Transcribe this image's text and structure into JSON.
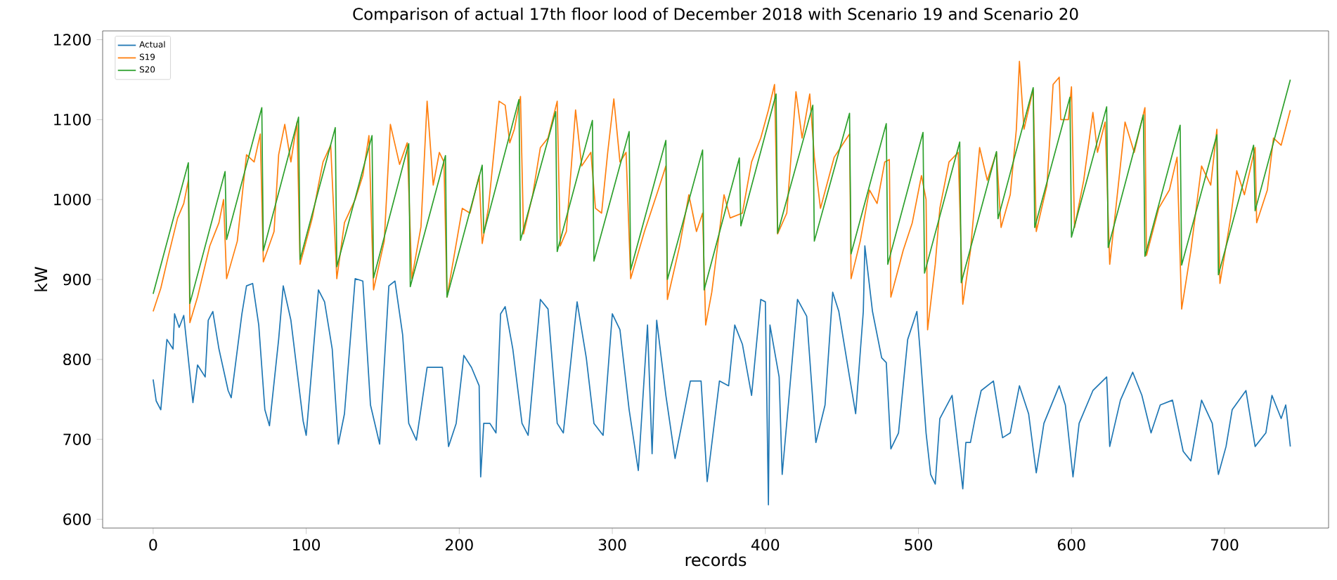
{
  "chart_data": {
    "type": "line",
    "title": "Comparison of actual 17th floor lood of December 2018 with Scenario 19 and Scenario 20",
    "xlabel": "records",
    "ylabel": "kW",
    "xlim": [
      -33,
      768
    ],
    "ylim": [
      589,
      1211
    ],
    "xticks": [
      0,
      100,
      200,
      300,
      400,
      500,
      600,
      700
    ],
    "yticks": [
      600,
      700,
      800,
      900,
      1000,
      1100,
      1200
    ],
    "legend": "top left",
    "grid": false,
    "line_style": "solid",
    "marker": "none",
    "series": [
      {
        "name": "Actual",
        "color": "#1f77b4",
        "x": [
          0,
          2,
          5,
          9,
          13,
          14,
          17,
          20,
          26,
          29,
          34,
          36,
          39,
          43,
          49,
          51,
          58,
          61,
          65,
          69,
          73,
          76,
          82,
          85,
          90,
          98,
          100,
          108,
          112,
          117,
          121,
          125,
          132,
          137,
          142,
          148,
          154,
          158,
          163,
          167,
          172,
          179,
          189,
          193,
          198,
          203,
          208,
          213,
          214,
          216,
          220,
          224,
          227,
          230,
          235,
          241,
          245,
          253,
          258,
          264,
          268,
          277,
          283,
          288,
          294,
          300,
          305,
          311,
          317,
          323,
          326,
          329,
          335,
          341,
          351,
          358,
          362,
          370,
          376,
          380,
          385,
          391,
          397,
          400,
          402,
          403,
          409,
          411,
          415,
          421,
          427,
          433,
          439,
          444,
          448,
          455,
          459,
          464,
          465,
          470,
          476,
          479,
          482,
          487,
          493,
          499,
          501,
          505,
          508,
          511,
          514,
          522,
          529,
          531,
          534,
          537,
          541,
          549,
          555,
          560,
          566,
          572,
          577,
          582,
          592,
          596,
          601,
          605,
          614,
          623,
          625,
          632,
          640,
          646,
          652,
          658,
          666,
          673,
          678,
          685,
          692,
          696,
          701,
          705,
          714,
          720,
          727,
          731,
          737,
          740,
          743
        ],
        "values": [
          775,
          748,
          737,
          825,
          813,
          857,
          840,
          855,
          746,
          793,
          778,
          849,
          860,
          813,
          761,
          752,
          857,
          892,
          895,
          843,
          737,
          717,
          825,
          892,
          849,
          723,
          705,
          887,
          872,
          813,
          694,
          732,
          901,
          898,
          743,
          694,
          892,
          898,
          831,
          720,
          699,
          790,
          790,
          691,
          720,
          805,
          790,
          767,
          653,
          720,
          720,
          708,
          857,
          866,
          813,
          720,
          705,
          875,
          863,
          720,
          708,
          872,
          802,
          720,
          705,
          857,
          837,
          737,
          661,
          843,
          682,
          849,
          755,
          676,
          773,
          773,
          647,
          773,
          767,
          843,
          819,
          755,
          875,
          872,
          618,
          843,
          778,
          656,
          743,
          875,
          854,
          696,
          743,
          884,
          860,
          778,
          732,
          860,
          942,
          860,
          802,
          796,
          688,
          708,
          825,
          860,
          813,
          708,
          656,
          644,
          726,
          755,
          638,
          696,
          696,
          726,
          761,
          773,
          702,
          708,
          767,
          732,
          658,
          720,
          767,
          743,
          653,
          720,
          761,
          778,
          691,
          749,
          784,
          755,
          708,
          743,
          749,
          685,
          673,
          749,
          720,
          656,
          691,
          737,
          761,
          691,
          708,
          755,
          726,
          743,
          691
        ]
      },
      {
        "name": "S19",
        "color": "#ff7f0e",
        "x": [
          0,
          5,
          10,
          16,
          20,
          23,
          24,
          29,
          37,
          43,
          46,
          48,
          55,
          61,
          66,
          70,
          72,
          79,
          82,
          86,
          90,
          94,
          96,
          104,
          108,
          111,
          116,
          120,
          125,
          132,
          137,
          141,
          144,
          151,
          155,
          161,
          166,
          169,
          175,
          179,
          183,
          187,
          190,
          192,
          202,
          207,
          213,
          215,
          219,
          226,
          230,
          233,
          236,
          240,
          242,
          248,
          253,
          258,
          264,
          266,
          270,
          276,
          280,
          286,
          289,
          293,
          297,
          301,
          305,
          309,
          312,
          321,
          330,
          335,
          336,
          344,
          350,
          355,
          359,
          361,
          365,
          373,
          377,
          385,
          391,
          397,
          402,
          406,
          408,
          414,
          420,
          424,
          429,
          432,
          436,
          445,
          455,
          456,
          462,
          468,
          473,
          478,
          481,
          482,
          490,
          496,
          502,
          505,
          506,
          511,
          514,
          520,
          526,
          529,
          534,
          540,
          545,
          551,
          554,
          560,
          564,
          566,
          569,
          575,
          577,
          584,
          588,
          592,
          593,
          598,
          600,
          602,
          608,
          614,
          617,
          622,
          625,
          629,
          635,
          641,
          648,
          649,
          657,
          664,
          669,
          672,
          678,
          685,
          691,
          695,
          697,
          704,
          708,
          713,
          720,
          721,
          728,
          732,
          737,
          743
        ],
        "values": [
          860,
          889,
          930,
          977,
          995,
          1024,
          846,
          878,
          942,
          971,
          1000,
          901,
          948,
          1056,
          1047,
          1082,
          922,
          960,
          1056,
          1094,
          1047,
          1097,
          919,
          977,
          1018,
          1047,
          1068,
          901,
          971,
          1000,
          1030,
          1080,
          887,
          948,
          1094,
          1044,
          1071,
          901,
          966,
          1123,
          1018,
          1059,
          1047,
          878,
          989,
          983,
          1030,
          945,
          989,
          1123,
          1118,
          1071,
          1088,
          1129,
          957,
          1006,
          1065,
          1077,
          1123,
          942,
          960,
          1112,
          1042,
          1059,
          989,
          983,
          1059,
          1126,
          1047,
          1059,
          901,
          960,
          1012,
          1042,
          875,
          942,
          1006,
          960,
          983,
          843,
          884,
          1006,
          977,
          983,
          1047,
          1077,
          1112,
          1144,
          957,
          983,
          1135,
          1077,
          1132,
          1053,
          989,
          1053,
          1082,
          901,
          948,
          1012,
          995,
          1047,
          1050,
          878,
          936,
          971,
          1030,
          1000,
          837,
          919,
          989,
          1047,
          1059,
          869,
          936,
          1065,
          1024,
          1059,
          965,
          1006,
          1088,
          1173,
          1088,
          1138,
          960,
          1018,
          1144,
          1153,
          1100,
          1100,
          1141,
          965,
          1024,
          1109,
          1059,
          1097,
          919,
          989,
          1097,
          1059,
          1115,
          930,
          989,
          1012,
          1053,
          863,
          936,
          1042,
          1018,
          1088,
          895,
          977,
          1036,
          1006,
          1065,
          971,
          1012,
          1077,
          1068,
          1112
        ]
      },
      {
        "name": "S20",
        "color": "#2ca02c",
        "x": [
          0,
          23,
          24,
          47,
          48,
          71,
          72,
          95,
          96,
          119,
          120,
          143,
          144,
          167,
          168,
          191,
          192,
          215,
          216,
          239,
          240,
          263,
          264,
          287,
          288,
          311,
          312,
          335,
          336,
          359,
          360,
          383,
          384,
          407,
          408,
          431,
          432,
          455,
          456,
          479,
          480,
          503,
          504,
          527,
          528,
          551,
          552,
          575,
          576,
          599,
          600,
          623,
          624,
          647,
          648,
          671,
          672,
          695,
          696,
          719,
          720,
          743
        ],
        "values": [
          882,
          1046,
          870,
          1035,
          950,
          1115,
          936,
          1103,
          925,
          1090,
          916,
          1080,
          902,
          1070,
          891,
          1055,
          878,
          1043,
          958,
          1125,
          949,
          1110,
          935,
          1099,
          923,
          1085,
          912,
          1074,
          900,
          1062,
          887,
          1052,
          967,
          1132,
          958,
          1118,
          948,
          1108,
          932,
          1095,
          919,
          1084,
          908,
          1072,
          896,
          1060,
          976,
          1140,
          965,
          1128,
          953,
          1116,
          940,
          1106,
          929,
          1093,
          918,
          1081,
          906,
          1068,
          986,
          1150
        ]
      }
    ]
  }
}
